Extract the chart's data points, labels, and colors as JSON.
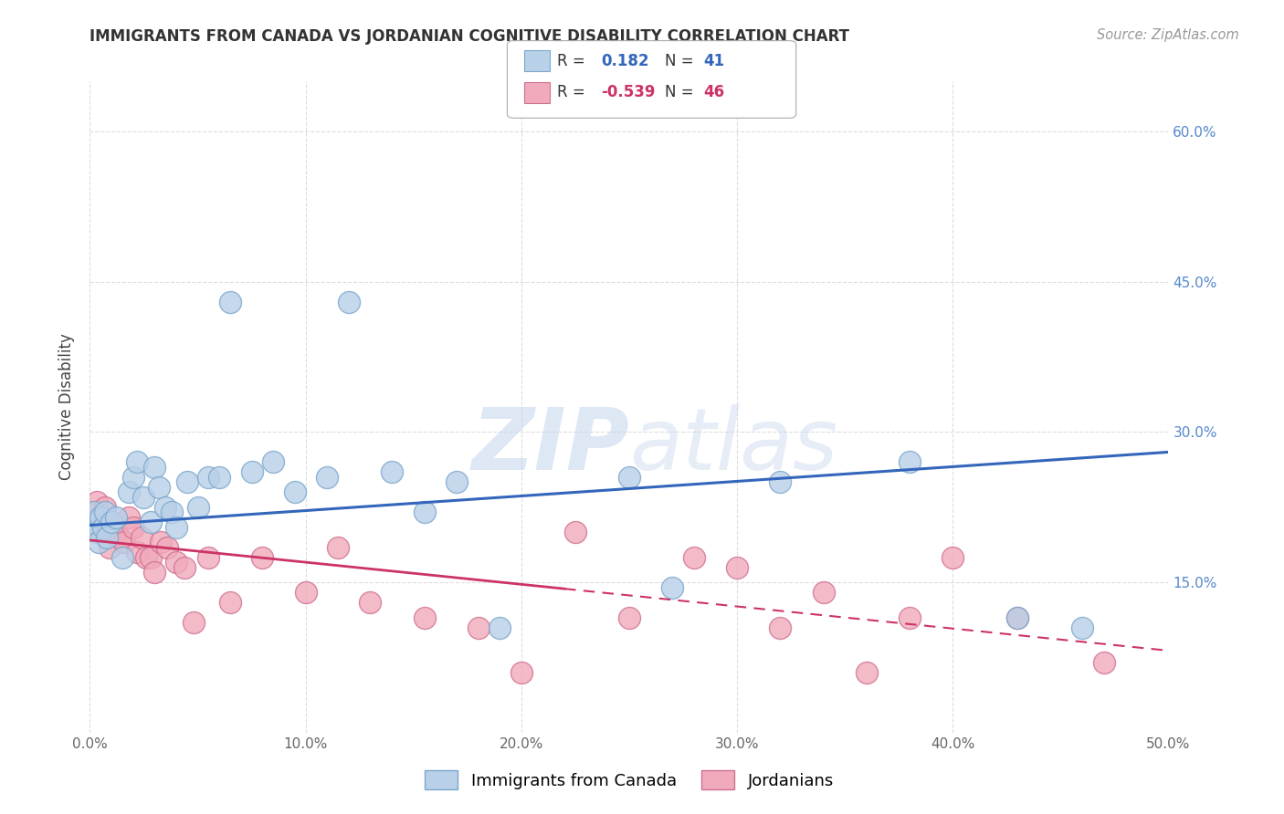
{
  "title": "IMMIGRANTS FROM CANADA VS JORDANIAN COGNITIVE DISABILITY CORRELATION CHART",
  "source": "Source: ZipAtlas.com",
  "ylabel": "Cognitive Disability",
  "xlim": [
    0.0,
    0.5
  ],
  "ylim": [
    0.0,
    0.65
  ],
  "xticks": [
    0.0,
    0.1,
    0.2,
    0.3,
    0.4,
    0.5
  ],
  "yticks": [
    0.15,
    0.3,
    0.45,
    0.6
  ],
  "xticklabels": [
    "0.0%",
    "10.0%",
    "20.0%",
    "30.0%",
    "40.0%",
    "50.0%"
  ],
  "yticklabels": [
    "15.0%",
    "30.0%",
    "45.0%",
    "60.0%"
  ],
  "background_color": "#ffffff",
  "grid_color": "#dddddd",
  "watermark_zip": "ZIP",
  "watermark_atlas": "atlas",
  "legend_text": [
    "R =",
    "0.182",
    "N =",
    "41",
    "R =",
    "-0.539",
    "N =",
    "46"
  ],
  "canada_color": "#b8d0e8",
  "canada_edge": "#7ba7cc",
  "jordan_color": "#f0aabb",
  "jordan_edge": "#d07090",
  "canada_line_color": "#3366bb",
  "jordan_line_color": "#cc3366",
  "tick_color": "#5588cc",
  "canada_scatter_x": [
    0.001,
    0.002,
    0.003,
    0.004,
    0.005,
    0.006,
    0.007,
    0.008,
    0.01,
    0.012,
    0.015,
    0.018,
    0.02,
    0.022,
    0.025,
    0.028,
    0.03,
    0.032,
    0.035,
    0.038,
    0.04,
    0.045,
    0.05,
    0.055,
    0.06,
    0.065,
    0.075,
    0.085,
    0.095,
    0.11,
    0.12,
    0.14,
    0.155,
    0.17,
    0.19,
    0.25,
    0.27,
    0.32,
    0.38,
    0.43,
    0.46
  ],
  "canada_scatter_y": [
    0.21,
    0.22,
    0.2,
    0.19,
    0.215,
    0.205,
    0.22,
    0.195,
    0.21,
    0.215,
    0.175,
    0.24,
    0.255,
    0.27,
    0.235,
    0.21,
    0.265,
    0.245,
    0.225,
    0.22,
    0.205,
    0.25,
    0.225,
    0.255,
    0.255,
    0.43,
    0.26,
    0.27,
    0.24,
    0.255,
    0.43,
    0.26,
    0.22,
    0.25,
    0.105,
    0.255,
    0.145,
    0.25,
    0.27,
    0.115,
    0.105
  ],
  "jordan_scatter_x": [
    0.001,
    0.002,
    0.003,
    0.004,
    0.005,
    0.006,
    0.007,
    0.008,
    0.009,
    0.01,
    0.011,
    0.012,
    0.014,
    0.016,
    0.018,
    0.02,
    0.022,
    0.024,
    0.026,
    0.028,
    0.03,
    0.033,
    0.036,
    0.04,
    0.044,
    0.048,
    0.055,
    0.065,
    0.08,
    0.1,
    0.115,
    0.13,
    0.155,
    0.18,
    0.2,
    0.225,
    0.25,
    0.28,
    0.3,
    0.32,
    0.34,
    0.36,
    0.38,
    0.4,
    0.43,
    0.47
  ],
  "jordan_scatter_y": [
    0.215,
    0.22,
    0.23,
    0.205,
    0.215,
    0.2,
    0.225,
    0.195,
    0.185,
    0.21,
    0.205,
    0.2,
    0.195,
    0.19,
    0.215,
    0.205,
    0.18,
    0.195,
    0.175,
    0.175,
    0.16,
    0.19,
    0.185,
    0.17,
    0.165,
    0.11,
    0.175,
    0.13,
    0.175,
    0.14,
    0.185,
    0.13,
    0.115,
    0.105,
    0.06,
    0.2,
    0.115,
    0.175,
    0.165,
    0.105,
    0.14,
    0.06,
    0.115,
    0.175,
    0.115,
    0.07
  ]
}
